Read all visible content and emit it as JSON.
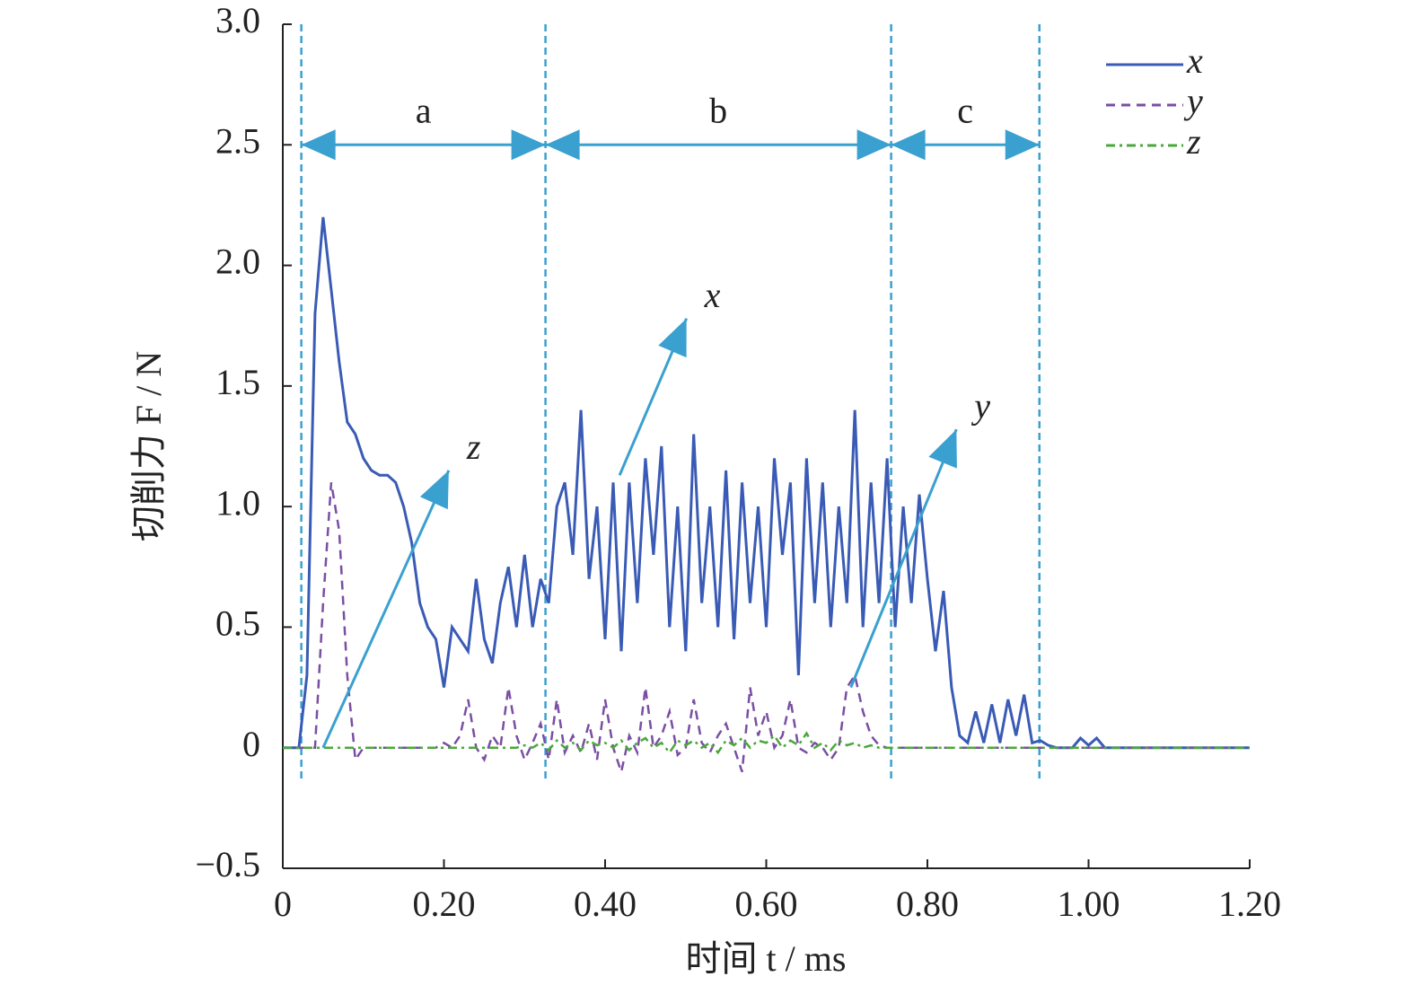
{
  "chart_data": {
    "type": "line",
    "xlabel": "时间 t / ms",
    "ylabel": "切削力 F / N",
    "xlim": [
      0,
      1.2
    ],
    "ylim": [
      -0.5,
      3.0
    ],
    "xticks": [
      0,
      {
        "value": 0.2,
        "label": "0.20"
      },
      {
        "value": 0.4,
        "label": "0.40"
      },
      {
        "value": 0.6,
        "label": "0.60"
      },
      {
        "value": 0.8,
        "label": "0.80"
      },
      {
        "value": 1.0,
        "label": "1.00"
      },
      {
        "value": 1.2,
        "label": "1.20"
      }
    ],
    "yticks": [
      {
        "value": -0.5,
        "label": "−0.5"
      },
      0,
      0.5,
      {
        "value": 1.0,
        "label": "1.0"
      },
      1.5,
      {
        "value": 2.0,
        "label": "2.0"
      },
      2.5,
      {
        "value": 3.0,
        "label": "3.0"
      }
    ],
    "grid": false,
    "legend": "upper right",
    "x": [
      0,
      0.01,
      0.02,
      0.03,
      0.04,
      0.05,
      0.06,
      0.07,
      0.08,
      0.09,
      0.1,
      0.11,
      0.12,
      0.13,
      0.14,
      0.15,
      0.16,
      0.17,
      0.18,
      0.19,
      0.2,
      0.21,
      0.22,
      0.23,
      0.24,
      0.25,
      0.26,
      0.27,
      0.28,
      0.29,
      0.3,
      0.31,
      0.32,
      0.33,
      0.34,
      0.35,
      0.36,
      0.37,
      0.38,
      0.39,
      0.4,
      0.41,
      0.42,
      0.43,
      0.44,
      0.45,
      0.46,
      0.47,
      0.48,
      0.49,
      0.5,
      0.51,
      0.52,
      0.53,
      0.54,
      0.55,
      0.56,
      0.57,
      0.58,
      0.59,
      0.6,
      0.61,
      0.62,
      0.63,
      0.64,
      0.65,
      0.66,
      0.67,
      0.68,
      0.69,
      0.7,
      0.71,
      0.72,
      0.73,
      0.74,
      0.75,
      0.76,
      0.77,
      0.78,
      0.79,
      0.8,
      0.81,
      0.82,
      0.83,
      0.84,
      0.85,
      0.86,
      0.87,
      0.88,
      0.89,
      0.9,
      0.91,
      0.92,
      0.93,
      0.94,
      0.95,
      0.96,
      0.97,
      0.98,
      0.99,
      1.0,
      1.01,
      1.02,
      1.03,
      1.04,
      1.05,
      1.06,
      1.07,
      1.08,
      1.09,
      1.1,
      1.11,
      1.12,
      1.13,
      1.14,
      1.15,
      1.16,
      1.17,
      1.18,
      1.19,
      1.2
    ],
    "series": [
      {
        "name": "x",
        "color": "#3a5bb5",
        "style": "solid",
        "values": [
          0,
          0,
          0,
          0.3,
          1.8,
          2.2,
          1.9,
          1.6,
          1.35,
          1.3,
          1.2,
          1.15,
          1.13,
          1.13,
          1.1,
          1.0,
          0.85,
          0.6,
          0.5,
          0.45,
          0.25,
          0.5,
          0.45,
          0.4,
          0.7,
          0.45,
          0.35,
          0.6,
          0.75,
          0.5,
          0.8,
          0.5,
          0.7,
          0.6,
          1.0,
          1.1,
          0.8,
          1.4,
          0.7,
          1.0,
          0.45,
          1.1,
          0.4,
          1.1,
          0.6,
          1.2,
          0.8,
          1.25,
          0.5,
          1.0,
          0.4,
          1.3,
          0.6,
          1.0,
          0.5,
          1.15,
          0.45,
          1.1,
          0.6,
          1.0,
          0.5,
          1.2,
          0.8,
          1.1,
          0.3,
          1.2,
          0.6,
          1.1,
          0.5,
          1.0,
          0.6,
          1.4,
          0.5,
          1.1,
          0.6,
          1.2,
          0.5,
          1.0,
          0.6,
          1.05,
          0.7,
          0.4,
          0.65,
          0.25,
          0.05,
          0.02,
          0.15,
          0.02,
          0.18,
          0.02,
          0.2,
          0.05,
          0.22,
          0.02,
          0.03,
          0.01,
          0,
          0,
          0,
          0.04,
          0.01,
          0.04,
          0,
          0,
          0,
          0,
          0,
          0,
          0,
          0,
          0,
          0,
          0,
          0,
          0,
          0,
          0,
          0,
          0,
          0,
          0
        ]
      },
      {
        "name": "y",
        "color": "#7a4fa3",
        "style": "dashed",
        "values": [
          0,
          0,
          0,
          0,
          0,
          0.6,
          1.1,
          0.9,
          0.3,
          -0.05,
          0,
          0,
          0,
          0,
          0,
          0,
          0,
          0,
          0,
          0,
          0.02,
          0,
          0.05,
          0.2,
          0,
          -0.05,
          0.05,
          0,
          0.25,
          0.05,
          -0.05,
          0.02,
          0.1,
          -0.05,
          0.2,
          -0.02,
          0.05,
          -0.02,
          0.1,
          -0.05,
          0.2,
          0,
          -0.1,
          0.05,
          -0.02,
          0.25,
          0,
          0.05,
          0.15,
          -0.03,
          0,
          0.2,
          0.02,
          -0.02,
          0.05,
          0.1,
          0,
          -0.1,
          0.25,
          0.05,
          0.15,
          0,
          0.05,
          0.2,
          0,
          -0.02,
          0.02,
          0,
          -0.05,
          0,
          0.25,
          0.3,
          0.15,
          0.05,
          0.01,
          0,
          0,
          0,
          0,
          0,
          0,
          0,
          0,
          0,
          0,
          0,
          0,
          0,
          0,
          0,
          0,
          0,
          0,
          0,
          0,
          0,
          0,
          0,
          0,
          0,
          0,
          0,
          0,
          0,
          0,
          0,
          0,
          0,
          0,
          0,
          0,
          0,
          0,
          0,
          0,
          0,
          0,
          0,
          0,
          0,
          0
        ]
      },
      {
        "name": "z",
        "color": "#4aa83a",
        "style": "dashdot",
        "values": [
          0,
          0,
          0,
          0,
          0,
          0,
          0,
          0,
          0,
          0,
          0,
          0,
          0,
          0,
          0,
          0,
          0,
          0,
          0,
          0,
          0,
          0,
          0,
          0,
          0,
          0,
          0,
          0,
          0,
          0,
          0.01,
          0,
          0.02,
          -0.01,
          0.03,
          0,
          0.02,
          -0.01,
          0.03,
          0.01,
          0.02,
          0,
          0.03,
          -0.01,
          0.02,
          0.04,
          0,
          0.02,
          -0.02,
          0.03,
          0.01,
          0.03,
          0,
          0.02,
          -0.02,
          0.03,
          0.01,
          0.04,
          0,
          0.03,
          0.02,
          0.05,
          0,
          0.03,
          0.01,
          0.06,
          0,
          0.02,
          -0.01,
          0.03,
          0.01,
          0.02,
          0,
          0.01,
          0,
          0,
          0,
          0,
          0,
          0,
          0,
          0,
          0,
          0,
          0,
          0,
          0,
          0,
          0,
          0,
          0,
          0,
          0,
          0,
          0,
          0,
          0,
          0,
          0,
          0,
          0,
          0,
          0,
          0,
          0,
          0,
          0,
          0,
          0,
          0,
          0,
          0,
          0,
          0,
          0,
          0,
          0,
          0,
          0,
          0,
          0
        ]
      }
    ],
    "annotation_color": "#3aa0d0",
    "boundaries": [
      0.023,
      0.326,
      0.755,
      0.939
    ],
    "regions": [
      {
        "label": "a",
        "start": 0.023,
        "end": 0.326,
        "y": 2.5
      },
      {
        "label": "b",
        "start": 0.326,
        "end": 0.755,
        "y": 2.5
      },
      {
        "label": "c",
        "start": 0.755,
        "end": 0.939,
        "y": 2.5
      }
    ],
    "pointers": [
      {
        "label": "z",
        "from": [
          0.05,
          0
        ],
        "to": [
          0.206,
          1.15
        ]
      },
      {
        "label": "x",
        "from": [
          0.418,
          1.13
        ],
        "to": [
          0.501,
          1.78
        ]
      },
      {
        "label": "y",
        "from": [
          0.705,
          0.25
        ],
        "to": [
          0.836,
          1.32
        ]
      }
    ]
  }
}
